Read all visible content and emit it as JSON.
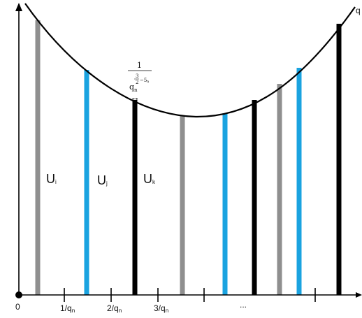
{
  "axis": {
    "origin_label": "0",
    "curve_label": "q",
    "ticks": [
      {
        "text": "1/q",
        "sub": "n"
      },
      {
        "text": "2/q",
        "sub": "n"
      },
      {
        "text": "3/q",
        "sub": "n"
      },
      {
        "text": "",
        "sub": ""
      },
      {
        "text": "",
        "sub": ""
      }
    ],
    "ellipsis": "..."
  },
  "bar_labels": [
    {
      "main": "U",
      "sub": "i"
    },
    {
      "main": "U",
      "sub": "j"
    },
    {
      "main": "U",
      "sub": "k"
    }
  ],
  "width_annotation": {
    "numerator": "1",
    "base": "q",
    "base_sub": "n",
    "exp_num": "3",
    "exp_den": "2",
    "exp_minus": "−5",
    "exp_minus_sub": "n",
    "arrow": "↔"
  },
  "bar_colors": {
    "gray": "#8f8f8f",
    "blue": "#1aa3e0",
    "black": "#000000"
  },
  "bars": [
    "gray",
    "blue",
    "black",
    "gray",
    "blue",
    "black",
    "gray",
    "blue",
    "black"
  ]
}
